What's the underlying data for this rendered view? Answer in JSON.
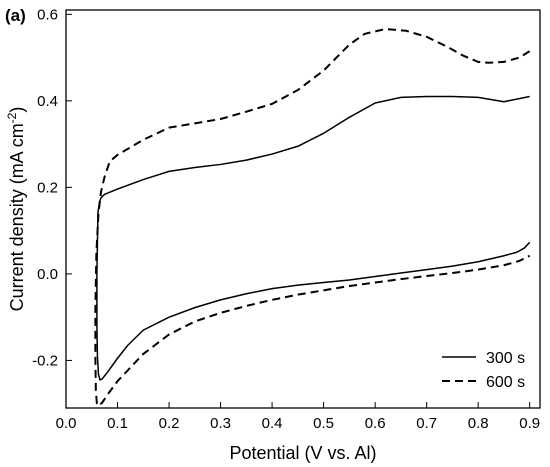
{
  "chart_data": {
    "type": "line",
    "panel_label": "(a)",
    "xlabel": "Potential (V vs. Al)",
    "ylabel_main": "Current density (mA cm",
    "ylabel_sup": "-2",
    "ylabel_close": ")",
    "xlim": [
      0.0,
      0.92
    ],
    "ylim": [
      -0.31,
      0.61
    ],
    "xticks": [
      0.0,
      0.1,
      0.2,
      0.3,
      0.4,
      0.5,
      0.6,
      0.7,
      0.8,
      0.9
    ],
    "xtick_labels": [
      "0.0",
      "0.1",
      "0.2",
      "0.3",
      "0.4",
      "0.5",
      "0.6",
      "0.7",
      "0.8",
      "0.9"
    ],
    "yticks": [
      -0.2,
      0.0,
      0.2,
      0.4,
      0.6
    ],
    "ytick_labels": [
      "-0.2",
      "0.0",
      "0.2",
      "0.4",
      "0.6"
    ],
    "grid": false,
    "legend_position": "bottom-right",
    "series": [
      {
        "name": "300 s",
        "style": "solid",
        "color": "#000000",
        "x": [
          0.9,
          0.85,
          0.8,
          0.75,
          0.7,
          0.65,
          0.6,
          0.55,
          0.5,
          0.45,
          0.4,
          0.35,
          0.3,
          0.25,
          0.2,
          0.15,
          0.1,
          0.075,
          0.068,
          0.065,
          0.062,
          0.06,
          0.06,
          0.061,
          0.063,
          0.066,
          0.07,
          0.08,
          0.1,
          0.12,
          0.15,
          0.2,
          0.25,
          0.3,
          0.35,
          0.4,
          0.45,
          0.5,
          0.55,
          0.6,
          0.65,
          0.7,
          0.75,
          0.8,
          0.85,
          0.875,
          0.89,
          0.9
        ],
        "y": [
          0.41,
          0.398,
          0.408,
          0.41,
          0.41,
          0.408,
          0.395,
          0.362,
          0.325,
          0.295,
          0.277,
          0.263,
          0.253,
          0.246,
          0.237,
          0.218,
          0.196,
          0.184,
          0.176,
          0.166,
          0.142,
          0.0,
          -0.12,
          -0.19,
          -0.232,
          -0.245,
          -0.243,
          -0.228,
          -0.195,
          -0.165,
          -0.13,
          -0.1,
          -0.078,
          -0.06,
          -0.046,
          -0.034,
          -0.026,
          -0.02,
          -0.014,
          -0.006,
          0.002,
          0.01,
          0.018,
          0.028,
          0.042,
          0.05,
          0.06,
          0.073
        ]
      },
      {
        "name": "600 s",
        "style": "dashed",
        "color": "#000000",
        "x": [
          0.9,
          0.88,
          0.85,
          0.82,
          0.8,
          0.77,
          0.74,
          0.7,
          0.66,
          0.62,
          0.58,
          0.55,
          0.5,
          0.45,
          0.4,
          0.35,
          0.3,
          0.25,
          0.2,
          0.15,
          0.1,
          0.085,
          0.075,
          0.068,
          0.063,
          0.059,
          0.057,
          0.057,
          0.058,
          0.06,
          0.063,
          0.07,
          0.08,
          0.1,
          0.15,
          0.2,
          0.25,
          0.3,
          0.35,
          0.4,
          0.45,
          0.5,
          0.55,
          0.6,
          0.65,
          0.7,
          0.75,
          0.8,
          0.85,
          0.88,
          0.9
        ],
        "y": [
          0.515,
          0.5,
          0.49,
          0.488,
          0.49,
          0.505,
          0.525,
          0.548,
          0.562,
          0.566,
          0.555,
          0.53,
          0.47,
          0.425,
          0.393,
          0.375,
          0.358,
          0.348,
          0.338,
          0.31,
          0.275,
          0.26,
          0.225,
          0.19,
          0.14,
          0.05,
          -0.08,
          -0.2,
          -0.27,
          -0.3,
          -0.305,
          -0.298,
          -0.28,
          -0.248,
          -0.185,
          -0.14,
          -0.11,
          -0.09,
          -0.074,
          -0.06,
          -0.048,
          -0.038,
          -0.028,
          -0.02,
          -0.012,
          -0.005,
          0.002,
          0.01,
          0.02,
          0.03,
          0.042
        ]
      }
    ]
  }
}
